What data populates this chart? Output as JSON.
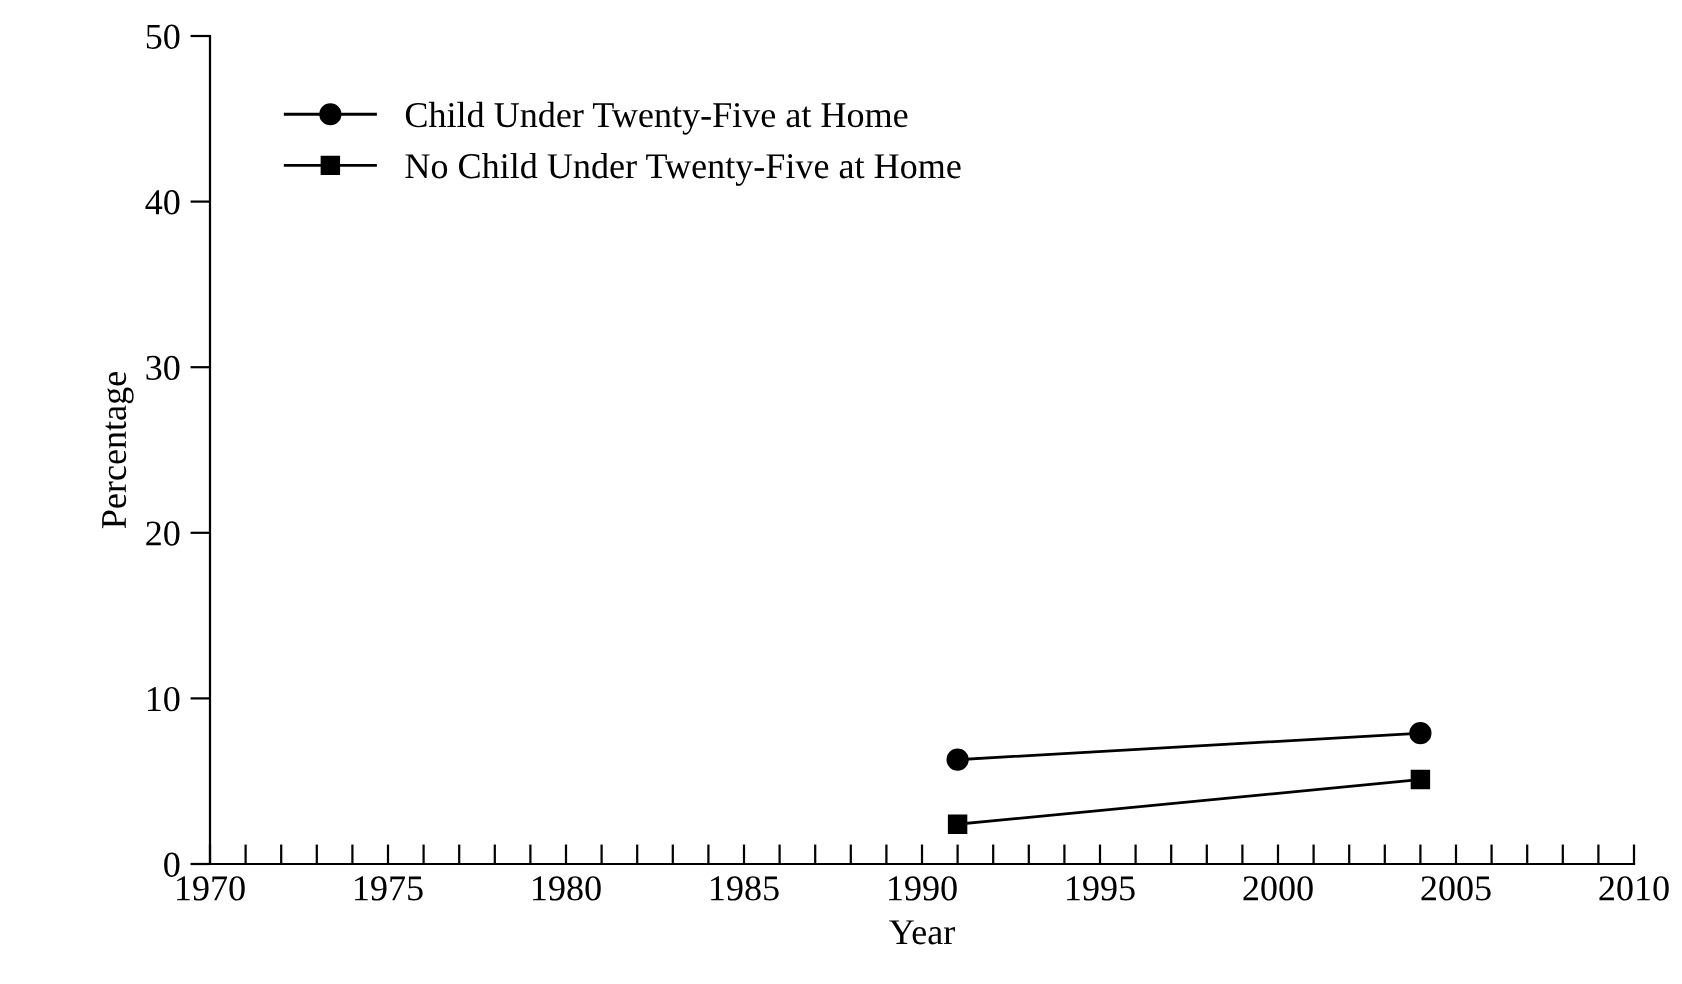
{
  "chart_data": {
    "type": "line",
    "xlabel": "Year",
    "ylabel": "Percentage",
    "x": [
      1991,
      2004
    ],
    "series": [
      {
        "name": "Child Under Twenty-Five at Home",
        "color": "#000000",
        "values": [
          6.3,
          7.9
        ],
        "marker": "circle"
      },
      {
        "name": "No Child Under Twenty-Five at Home",
        "color": "#000000",
        "values": [
          2.4,
          5.1
        ],
        "marker": "square"
      }
    ],
    "xlim": [
      1970,
      2010
    ],
    "ylim": [
      0,
      50
    ],
    "xticks": [
      1970,
      {
        "value": 1971,
        "label": null
      },
      {
        "value": 1972,
        "label": null
      },
      {
        "value": 1973,
        "label": null
      },
      {
        "value": 1974,
        "label": null
      },
      1975,
      {
        "value": 1976,
        "label": null
      },
      {
        "value": 1977,
        "label": null
      },
      {
        "value": 1978,
        "label": null
      },
      {
        "value": 1979,
        "label": null
      },
      1980,
      {
        "value": 1981,
        "label": null
      },
      {
        "value": 1982,
        "label": null
      },
      {
        "value": 1983,
        "label": null
      },
      {
        "value": 1984,
        "label": null
      },
      1985,
      {
        "value": 1986,
        "label": null
      },
      {
        "value": 1987,
        "label": null
      },
      {
        "value": 1988,
        "label": null
      },
      {
        "value": 1989,
        "label": null
      },
      1990,
      {
        "value": 1991,
        "label": null
      },
      {
        "value": 1992,
        "label": null
      },
      {
        "value": 1993,
        "label": null
      },
      {
        "value": 1994,
        "label": null
      },
      1995,
      {
        "value": 1996,
        "label": null
      },
      {
        "value": 1997,
        "label": null
      },
      {
        "value": 1998,
        "label": null
      },
      {
        "value": 1999,
        "label": null
      },
      2000,
      {
        "value": 2001,
        "label": null
      },
      {
        "value": 2002,
        "label": null
      },
      {
        "value": 2003,
        "label": null
      },
      {
        "value": 2004,
        "label": null
      },
      2005,
      {
        "value": 2006,
        "label": null
      },
      {
        "value": 2007,
        "label": null
      },
      {
        "value": 2008,
        "label": null
      },
      {
        "value": 2009,
        "label": null
      },
      2010
    ],
    "yticks": [
      0,
      10,
      20,
      30,
      40,
      50
    ],
    "grid": false,
    "legend": "top left",
    "line_style": "solid"
  }
}
